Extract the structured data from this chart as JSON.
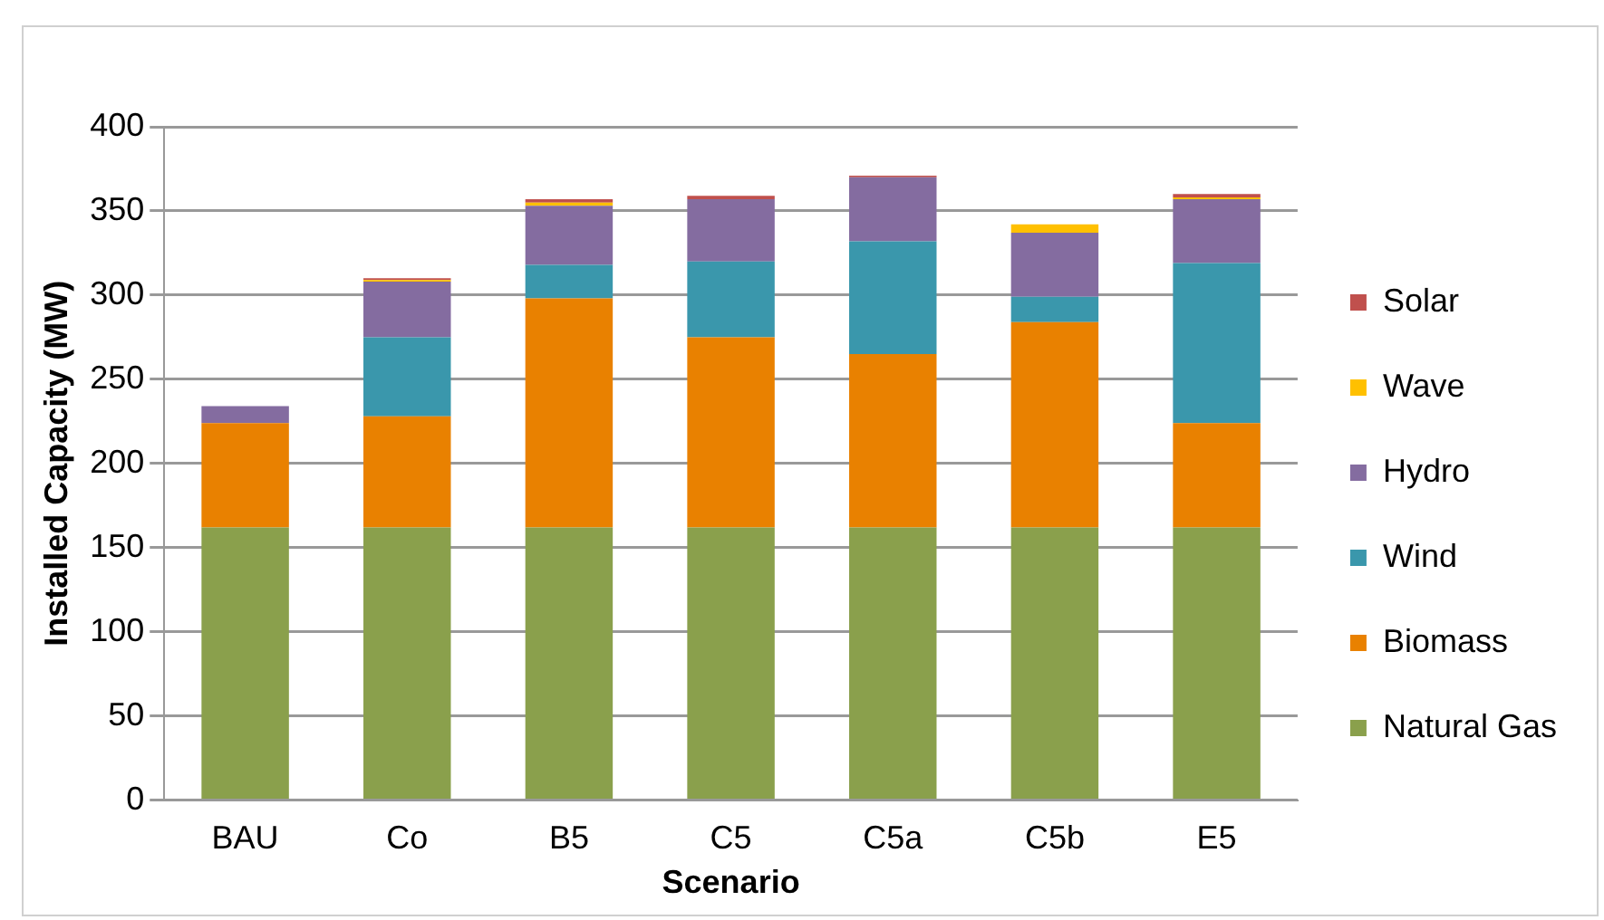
{
  "chart_data": {
    "type": "bar",
    "stacked": true,
    "xlabel": "Scenario",
    "ylabel": "Installed Capacity (MW)",
    "categories": [
      "BAU",
      "Co",
      "B5",
      "C5",
      "C5a",
      "C5b",
      "E5"
    ],
    "series": [
      {
        "name": "Natural Gas",
        "color": "#8aa04c",
        "values": [
          162,
          162,
          162,
          162,
          162,
          162,
          162
        ]
      },
      {
        "name": "Biomass",
        "color": "#e98100",
        "values": [
          62,
          66,
          136,
          113,
          103,
          122,
          62
        ]
      },
      {
        "name": "Wind",
        "color": "#3a97ac",
        "values": [
          0,
          47,
          20,
          45,
          67,
          15,
          95
        ]
      },
      {
        "name": "Hydro",
        "color": "#846ca0",
        "values": [
          10,
          33,
          35,
          37,
          38,
          38,
          38
        ]
      },
      {
        "name": "Wave",
        "color": "#ffc000",
        "values": [
          0,
          1,
          2,
          0,
          0,
          5,
          1
        ]
      },
      {
        "name": "Solar",
        "color": "#c0504d",
        "values": [
          0,
          1,
          2,
          2,
          1,
          0,
          2
        ]
      }
    ],
    "ylim": [
      0,
      400
    ],
    "yticks": [
      0,
      50,
      100,
      150,
      200,
      250,
      300,
      350,
      400
    ],
    "grid": "y",
    "legend": "right"
  }
}
